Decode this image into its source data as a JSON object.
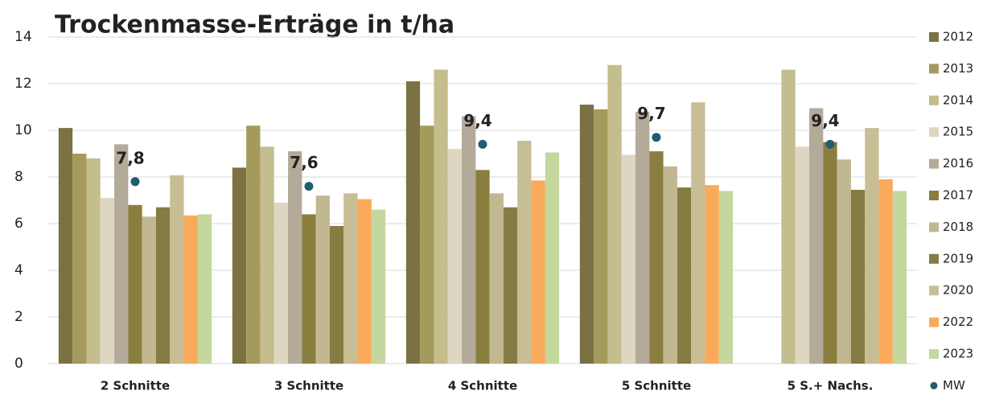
{
  "chart_data": {
    "type": "bar",
    "title": "Trockenmasse-Erträge in t/ha",
    "categories": [
      "2 Schnitte",
      "3 Schnitte",
      "4 Schnitte",
      "5 Schnitte",
      "5 S.+ Nachs."
    ],
    "series": [
      {
        "name": "2012",
        "color": "#7b7142",
        "values": [
          10.1,
          8.4,
          12.1,
          11.1,
          null
        ]
      },
      {
        "name": "2013",
        "color": "#a49a5c",
        "values": [
          9.0,
          10.2,
          10.2,
          10.9,
          null
        ]
      },
      {
        "name": "2014",
        "color": "#c4bd8e",
        "values": [
          8.8,
          9.3,
          12.6,
          12.8,
          12.6
        ]
      },
      {
        "name": "2015",
        "color": "#ddd7c2",
        "values": [
          7.1,
          6.9,
          9.2,
          8.95,
          9.3
        ]
      },
      {
        "name": "2016",
        "color": "#b4aa9a",
        "values": [
          9.4,
          9.1,
          10.6,
          10.8,
          10.95
        ]
      },
      {
        "name": "2017",
        "color": "#8a7e3f",
        "values": [
          6.8,
          6.4,
          8.3,
          9.1,
          9.5
        ]
      },
      {
        "name": "2018",
        "color": "#c1b891",
        "values": [
          6.3,
          7.2,
          7.3,
          8.45,
          8.75
        ]
      },
      {
        "name": "2019",
        "color": "#867b42",
        "values": [
          6.7,
          5.9,
          6.7,
          7.55,
          7.45
        ]
      },
      {
        "name": "2020",
        "color": "#c8be96",
        "values": [
          8.07,
          7.3,
          9.55,
          11.2,
          10.1
        ]
      },
      {
        "name": "2022",
        "color": "#f9aa5b",
        "values": [
          6.35,
          7.05,
          7.85,
          7.65,
          7.9
        ]
      },
      {
        "name": "2023",
        "color": "#c4d79c",
        "values": [
          6.4,
          6.6,
          9.05,
          7.4,
          7.4
        ]
      },
      {
        "name": "MW",
        "color": "#1f5d70",
        "marker": "dot",
        "values": [
          7.8,
          7.6,
          9.4,
          9.7,
          9.4
        ],
        "value_labels": [
          "7,8",
          "7,6",
          "9,4",
          "9,7",
          "9,4"
        ]
      }
    ],
    "ylim": [
      0,
      14
    ],
    "yticks": [
      0,
      2,
      4,
      6,
      8,
      10,
      12,
      14
    ],
    "grid": true,
    "legend": "right"
  }
}
